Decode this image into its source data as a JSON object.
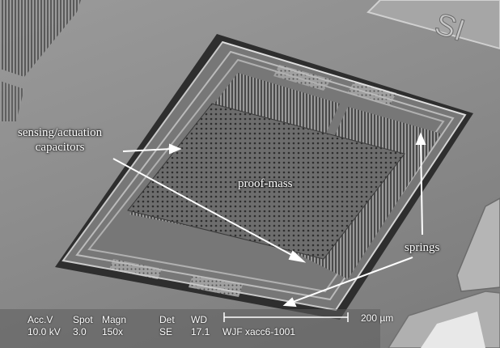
{
  "labels": {
    "sensing_line1": "sensing/actuation",
    "sensing_line2": "capacitors",
    "proof_mass": "proof-mass",
    "springs": "springs"
  },
  "info_bar": {
    "acc_v_label": "Acc.V",
    "acc_v_value": "10.0 kV",
    "spot_label": "Spot",
    "spot_value": "3.0",
    "magn_label": "Magn",
    "magn_value": "150x",
    "det_label": "Det",
    "det_value": "SE",
    "wd_label": "WD",
    "wd_value": "17.1",
    "sample_id": "WJF xacc6-1001",
    "scale_label": "200 µm"
  },
  "colors": {
    "annotation": "#ffffff",
    "substrate": "#8c8c8c",
    "device": "#5a5a5a"
  }
}
